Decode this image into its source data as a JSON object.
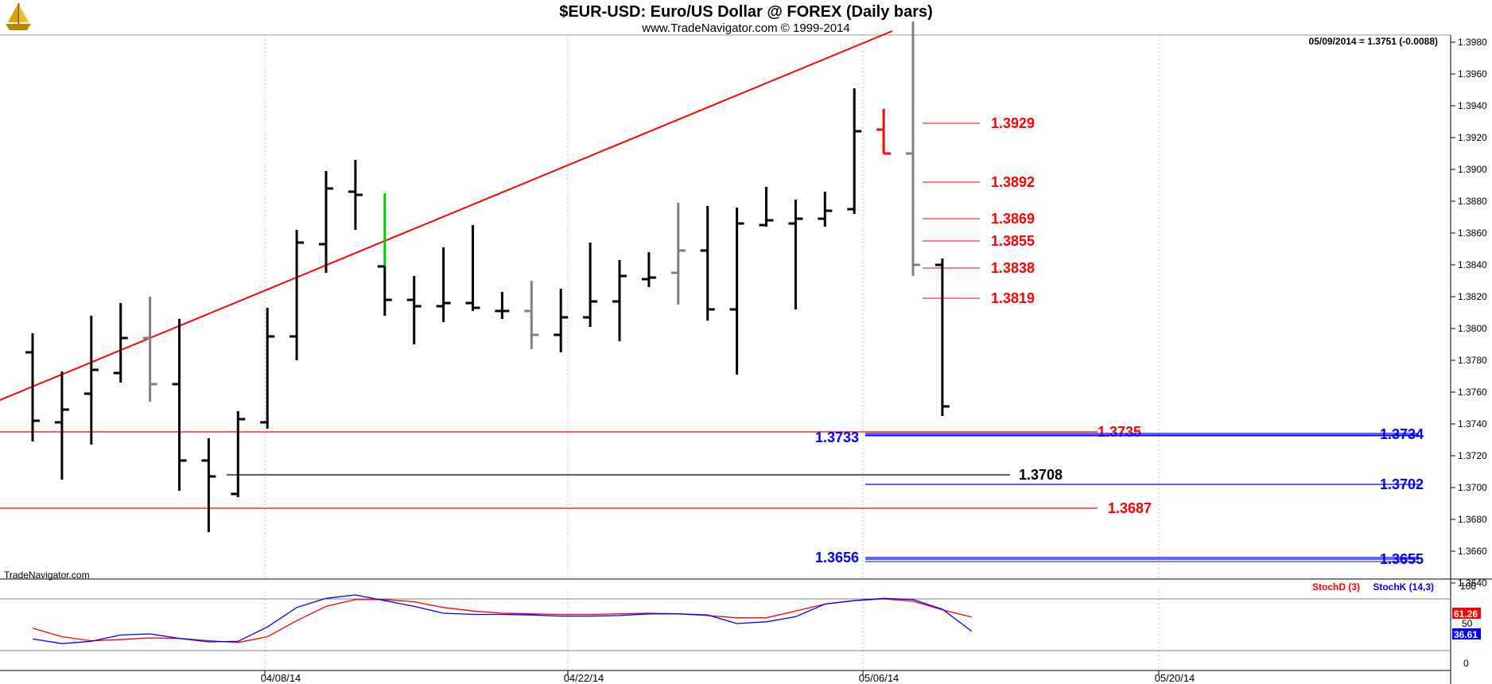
{
  "header": {
    "title": "$EUR-USD:  Euro/US Dollar @ FOREX  (Daily bars)",
    "subtitle": "www.TradeNavigator.com © 1999-2014",
    "quote": "05/09/2014 = 1.3751 (-0.0088)",
    "watermark": "TradeNavigator.com",
    "logo_icon": "sailboat-logo-icon"
  },
  "colors": {
    "bar": "#000000",
    "bar_gray": "#808080",
    "bar_red": "#ff0000",
    "bar_green": "#00cc00",
    "red_level": "#ff0000",
    "blue_level": "#0000ff",
    "black_level": "#000000",
    "stoch_d": "#ff0000",
    "stoch_k": "#0000ff",
    "grid": "#c0c0c0"
  },
  "chart_data": {
    "type": "ohlc",
    "price_axis": {
      "ylim": [
        1.3635,
        1.3987
      ],
      "ticks": [
        "1.3640",
        "1.3660",
        "1.3680",
        "1.3700",
        "1.3720",
        "1.3740",
        "1.3760",
        "1.3780",
        "1.3800",
        "1.3820",
        "1.3840",
        "1.3860",
        "1.3880",
        "1.3900",
        "1.3920",
        "1.3940",
        "1.3960",
        "1.3980"
      ]
    },
    "date_labels": [
      "04/08/14",
      "04/22/14",
      "05/06/14",
      "05/20/14"
    ],
    "bars": [
      {
        "date": "03/27",
        "open": 1.3785,
        "high": 1.3797,
        "low": 1.3729,
        "close": 1.3742,
        "color": "black"
      },
      {
        "date": "03/28",
        "open": 1.3741,
        "high": 1.3773,
        "low": 1.3705,
        "close": 1.3749,
        "color": "black"
      },
      {
        "date": "03/31",
        "open": 1.3759,
        "high": 1.3808,
        "low": 1.3727,
        "close": 1.3774,
        "color": "black"
      },
      {
        "date": "04/01",
        "open": 1.3772,
        "high": 1.3816,
        "low": 1.3766,
        "close": 1.3794,
        "color": "black"
      },
      {
        "date": "04/02",
        "open": 1.3794,
        "high": 1.382,
        "low": 1.3754,
        "close": 1.3765,
        "color": "gray"
      },
      {
        "date": "04/03",
        "open": 1.3765,
        "high": 1.3806,
        "low": 1.3698,
        "close": 1.3717,
        "color": "black"
      },
      {
        "date": "04/04",
        "open": 1.3717,
        "high": 1.3731,
        "low": 1.3672,
        "close": 1.3707,
        "color": "black"
      },
      {
        "date": "04/07",
        "open": 1.3696,
        "high": 1.3748,
        "low": 1.3694,
        "close": 1.3743,
        "color": "black"
      },
      {
        "date": "04/08",
        "open": 1.3741,
        "high": 1.3813,
        "low": 1.3737,
        "close": 1.3795,
        "color": "black"
      },
      {
        "date": "04/09",
        "open": 1.3795,
        "high": 1.3862,
        "low": 1.378,
        "close": 1.3854,
        "color": "black"
      },
      {
        "date": "04/10",
        "open": 1.3853,
        "high": 1.3899,
        "low": 1.3835,
        "close": 1.3888,
        "color": "black"
      },
      {
        "date": "04/11",
        "open": 1.3886,
        "high": 1.3906,
        "low": 1.3862,
        "close": 1.3884,
        "color": "black"
      },
      {
        "date": "04/14",
        "open": 1.3839,
        "high": 1.3885,
        "low": 1.3808,
        "close": 1.3818,
        "color": "black",
        "wick_color": "green"
      },
      {
        "date": "04/15",
        "open": 1.3818,
        "high": 1.3833,
        "low": 1.379,
        "close": 1.3814,
        "color": "black"
      },
      {
        "date": "04/16",
        "open": 1.3814,
        "high": 1.3851,
        "low": 1.3804,
        "close": 1.3816,
        "color": "black"
      },
      {
        "date": "04/17",
        "open": 1.3816,
        "high": 1.3865,
        "low": 1.3811,
        "close": 1.3813,
        "color": "black"
      },
      {
        "date": "04/18",
        "open": 1.3811,
        "high": 1.3823,
        "low": 1.3806,
        "close": 1.3811,
        "color": "black"
      },
      {
        "date": "04/21",
        "open": 1.3811,
        "high": 1.383,
        "low": 1.3787,
        "close": 1.3796,
        "color": "gray"
      },
      {
        "date": "04/22",
        "open": 1.3796,
        "high": 1.3825,
        "low": 1.3785,
        "close": 1.3807,
        "color": "black"
      },
      {
        "date": "04/23",
        "open": 1.3807,
        "high": 1.3854,
        "low": 1.3801,
        "close": 1.3817,
        "color": "black"
      },
      {
        "date": "04/24",
        "open": 1.3817,
        "high": 1.3843,
        "low": 1.3792,
        "close": 1.3833,
        "color": "black"
      },
      {
        "date": "04/25",
        "open": 1.3831,
        "high": 1.3848,
        "low": 1.3826,
        "close": 1.3832,
        "color": "black"
      },
      {
        "date": "04/28",
        "open": 1.3835,
        "high": 1.3879,
        "low": 1.3815,
        "close": 1.3849,
        "color": "gray"
      },
      {
        "date": "04/29",
        "open": 1.3849,
        "high": 1.3877,
        "low": 1.3805,
        "close": 1.3812,
        "color": "black"
      },
      {
        "date": "04/30",
        "open": 1.3812,
        "high": 1.3876,
        "low": 1.3771,
        "close": 1.3866,
        "color": "black"
      },
      {
        "date": "05/01",
        "open": 1.3865,
        "high": 1.3889,
        "low": 1.3864,
        "close": 1.3868,
        "color": "black"
      },
      {
        "date": "05/02",
        "open": 1.3866,
        "high": 1.3881,
        "low": 1.3812,
        "close": 1.3869,
        "color": "black"
      },
      {
        "date": "05/05",
        "open": 1.3869,
        "high": 1.3886,
        "low": 1.3864,
        "close": 1.3874,
        "color": "black"
      },
      {
        "date": "05/06",
        "open": 1.3875,
        "high": 1.3951,
        "low": 1.3872,
        "close": 1.3924,
        "color": "black"
      },
      {
        "date": "05/07",
        "open": 1.3925,
        "high": 1.3938,
        "low": 1.391,
        "close": 1.391,
        "color": "red"
      },
      {
        "date": "05/08",
        "open": 1.391,
        "high": 1.3993,
        "low": 1.3833,
        "close": 1.384,
        "color": "gray"
      },
      {
        "date": "05/09",
        "open": 1.384,
        "high": 1.3844,
        "low": 1.3745,
        "close": 1.3751,
        "color": "black"
      }
    ],
    "trendline": {
      "from": {
        "date": "03/26",
        "price": 1.3755
      },
      "to": {
        "date": "05/07",
        "price": 1.3987
      },
      "color": "red"
    },
    "levels_upper": [
      "1.3929",
      "1.3892",
      "1.3869",
      "1.3855",
      "1.3838",
      "1.3819"
    ],
    "level_lines": [
      {
        "label": "1.3735",
        "color": "red"
      },
      {
        "label": "1.3733",
        "color": "blue"
      },
      {
        "label": "1.3734",
        "color": "blue"
      },
      {
        "label": "1.3708",
        "color": "black"
      },
      {
        "label": "1.3702",
        "color": "blue"
      },
      {
        "label": "1.3687",
        "color": "red"
      },
      {
        "label": "1.3656",
        "color": "blue"
      },
      {
        "label": "1.3655",
        "color": "blue"
      }
    ],
    "stochastic": {
      "legend_d": "StochD (3)",
      "legend_k": "StochK (14,3)",
      "ylim": [
        0,
        100
      ],
      "ticks": [
        "0",
        "50",
        "100"
      ],
      "last_d": "61.26",
      "last_k": "36.61",
      "d_values": [
        42,
        27,
        20,
        22,
        25,
        24,
        20,
        17,
        27,
        55,
        80,
        92,
        92,
        88,
        78,
        72,
        68,
        67,
        66,
        66,
        67,
        68,
        67,
        64,
        60,
        60,
        72,
        84,
        90,
        93,
        89,
        74,
        61.26
      ],
      "k_values": [
        23,
        15,
        19,
        30,
        32,
        24,
        18,
        19,
        44,
        78,
        94,
        100,
        90,
        80,
        68,
        66,
        66,
        65,
        63,
        63,
        64,
        67,
        67,
        65,
        50,
        53,
        62,
        84,
        90,
        94,
        92,
        75,
        36.61
      ]
    }
  }
}
